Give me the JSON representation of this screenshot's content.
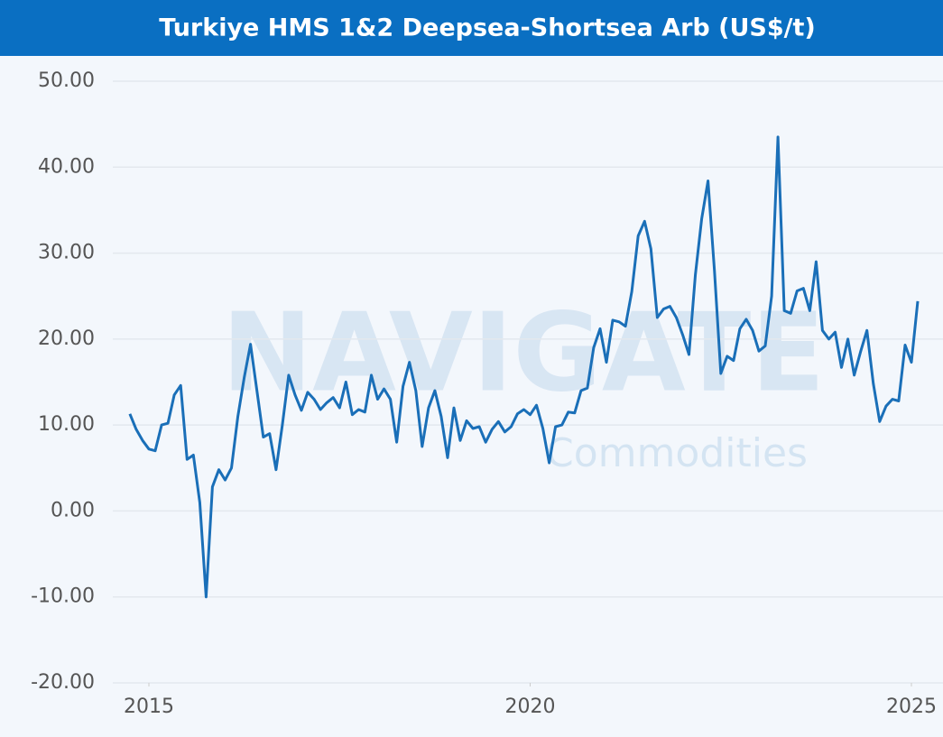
{
  "chart_data": {
    "type": "line",
    "title": "Turkiye HMS 1&2 Deepsea-Shortsea Arb (US$/t)",
    "watermark": [
      "NAVIGATE",
      "Commodities"
    ],
    "color": "#1a6fb8",
    "x": [
      2014.75,
      2014.833,
      2014.917,
      2015,
      2015.083,
      2015.167,
      2015.25,
      2015.333,
      2015.417,
      2015.5,
      2015.583,
      2015.667,
      2015.75,
      2015.833,
      2015.917,
      2016,
      2016.083,
      2016.167,
      2016.25,
      2016.333,
      2016.417,
      2016.5,
      2016.583,
      2016.667,
      2016.75,
      2016.833,
      2016.917,
      2017,
      2017.083,
      2017.167,
      2017.25,
      2017.333,
      2017.417,
      2017.5,
      2017.583,
      2017.667,
      2017.75,
      2017.833,
      2017.917,
      2018,
      2018.083,
      2018.167,
      2018.25,
      2018.333,
      2018.417,
      2018.5,
      2018.583,
      2018.667,
      2018.75,
      2018.833,
      2018.917,
      2019,
      2019.083,
      2019.167,
      2019.25,
      2019.333,
      2019.417,
      2019.5,
      2019.583,
      2019.667,
      2019.75,
      2019.833,
      2019.917,
      2020,
      2020.083,
      2020.167,
      2020.25,
      2020.333,
      2020.417,
      2020.5,
      2020.583,
      2020.667,
      2020.75,
      2020.833,
      2020.917,
      2021,
      2021.083,
      2021.167,
      2021.25,
      2021.333,
      2021.417,
      2021.5,
      2021.583,
      2021.667,
      2021.75,
      2021.833,
      2021.917,
      2022,
      2022.083,
      2022.167,
      2022.25,
      2022.333,
      2022.417,
      2022.5,
      2022.583,
      2022.667,
      2022.75,
      2022.833,
      2022.917,
      2023,
      2023.083,
      2023.167,
      2023.25,
      2023.333,
      2023.417,
      2023.5,
      2023.583,
      2023.667,
      2023.75,
      2023.833,
      2023.917,
      2024,
      2024.083,
      2024.167,
      2024.25,
      2024.333,
      2024.417,
      2024.5,
      2024.583,
      2024.667,
      2024.75,
      2024.833,
      2024.917,
      2025,
      2025.083
    ],
    "values": [
      11.3,
      9.5,
      8.2,
      7.2,
      7.0,
      10.0,
      10.2,
      13.5,
      14.6,
      6.0,
      6.5,
      1.0,
      -10.0,
      2.8,
      4.8,
      3.6,
      5.0,
      11.0,
      15.5,
      19.4,
      14.0,
      8.6,
      9.0,
      4.8,
      10.0,
      15.8,
      13.5,
      11.7,
      13.8,
      13.0,
      11.8,
      12.6,
      13.2,
      12.0,
      15.0,
      11.2,
      11.8,
      11.5,
      15.8,
      13.0,
      14.2,
      13.0,
      8.0,
      14.5,
      17.3,
      14.0,
      7.5,
      12.0,
      14.0,
      11.0,
      6.2,
      12.0,
      8.2,
      10.5,
      9.6,
      9.8,
      8.0,
      9.5,
      10.4,
      9.2,
      9.8,
      11.3,
      11.8,
      11.2,
      12.3,
      9.6,
      5.6,
      9.8,
      10.0,
      11.5,
      11.4,
      14.0,
      14.3,
      19.0,
      21.2,
      17.3,
      22.2,
      22.0,
      21.5,
      25.5,
      32.0,
      33.7,
      30.5,
      22.5,
      23.5,
      23.8,
      22.5,
      20.5,
      18.2,
      27.5,
      34.0,
      38.4,
      28.0,
      16.0,
      18.0,
      17.5,
      21.2,
      22.3,
      21.0,
      18.6,
      19.2,
      25.0,
      43.5,
      23.3,
      23.0,
      25.6,
      25.9,
      23.3,
      29.0,
      21.0,
      20.0,
      20.8,
      16.7,
      20.0,
      15.8,
      18.5,
      21.0,
      14.8,
      10.4,
      12.2,
      13.0,
      12.8,
      19.3,
      17.3,
      24.4
    ],
    "xlim": [
      2014.5,
      2025.3
    ],
    "xticks": [
      2015,
      2020,
      2025
    ],
    "ylim": [
      -20,
      50
    ],
    "yticks": [
      {
        "value": -20,
        "label": "-20.00"
      },
      {
        "value": -10,
        "label": "-10.00"
      },
      {
        "value": 0,
        "label": "0.00"
      },
      {
        "value": 10,
        "label": "10.00"
      },
      {
        "value": 20,
        "label": "20.00"
      },
      {
        "value": 30,
        "label": "30.00"
      },
      {
        "value": 40,
        "label": "40.00"
      },
      {
        "value": 50,
        "label": "50.00"
      }
    ],
    "grid": true
  }
}
